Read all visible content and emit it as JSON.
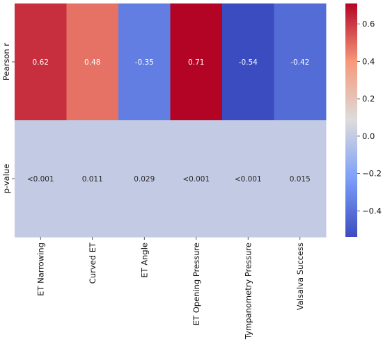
{
  "chart_data": {
    "type": "heatmap",
    "columns": [
      "ET Narrowing",
      "Curved ET",
      "ET Angle",
      "ET Opening Pressure",
      "Tympanometry Pressure",
      "Valsalva Success"
    ],
    "rows": [
      {
        "label": "Pearson r",
        "values": [
          0.62,
          0.48,
          -0.35,
          0.71,
          -0.54,
          -0.42
        ],
        "annotations": [
          "0.62",
          "0.48",
          "-0.35",
          "0.71",
          "-0.54",
          "-0.42"
        ]
      },
      {
        "label": "p-value",
        "values": [
          0,
          0,
          0,
          0,
          0,
          0
        ],
        "annotations": [
          "<0.001",
          "0.011",
          "0.029",
          "<0.001",
          "<0.001",
          "0.015"
        ]
      }
    ],
    "colormap": "coolwarm",
    "vmin": -0.54,
    "vmax": 0.71,
    "colorbar_ticks": [
      "0.6",
      "0.4",
      "0.2",
      "0.0",
      "−0.2",
      "−0.4"
    ],
    "colorbar_tick_values": [
      0.6,
      0.4,
      0.2,
      0.0,
      -0.2,
      -0.4
    ]
  }
}
